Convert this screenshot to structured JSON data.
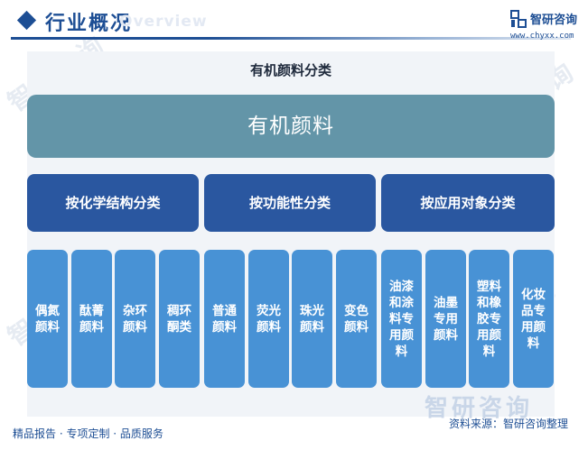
{
  "header": {
    "title": "行业概况",
    "watermark": "Overview",
    "logo_name": "智研咨询",
    "logo_url": "www.chyxx.com"
  },
  "diagram": {
    "title": "有机颜料分类",
    "root": "有机颜料",
    "categories": [
      {
        "label": "按化学结构分类",
        "items": [
          "偶氮颜料",
          "酞菁颜料",
          "杂环颜料",
          "稠环酮类"
        ]
      },
      {
        "label": "按功能性分类",
        "items": [
          "普通颜料",
          "荧光颜料",
          "珠光颜料",
          "变色颜料"
        ]
      },
      {
        "label": "按应用对象分类",
        "items": [
          "油漆和涂料专用颜料",
          "油墨专用颜料",
          "塑料和橡胶专用颜料",
          "化妆品专用颜料"
        ]
      }
    ]
  },
  "footer": {
    "slogan": "精品报告 · 专项定制 · 品质服务",
    "source": "资料来源：智研咨询整理",
    "watermark": "智研咨询"
  },
  "colors": {
    "brand": "#1d4e94",
    "root_box": "#6395a8",
    "category_box": "#2a57a0",
    "leaf_box": "#4892d5"
  }
}
